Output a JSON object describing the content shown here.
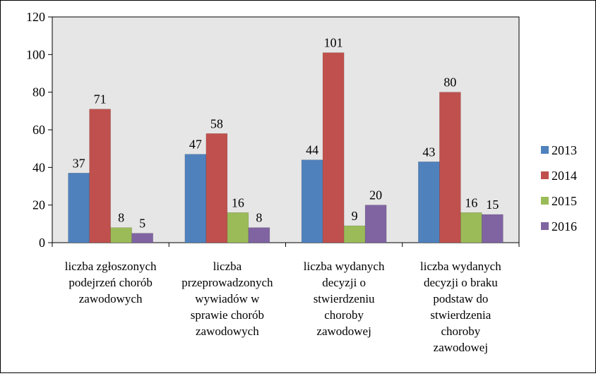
{
  "chart_data": {
    "type": "bar",
    "title": "",
    "xlabel": "",
    "ylabel": "",
    "ylim": [
      0,
      120
    ],
    "yticks": [
      0,
      20,
      40,
      60,
      80,
      100,
      120
    ],
    "grid": false,
    "legend_position": "right",
    "categories": [
      [
        "liczba zgłoszonych",
        "podejrzeń chorób",
        "zawodowych"
      ],
      [
        "liczba",
        "przeprowadzonych",
        "wywiadów w",
        "sprawie chorób",
        "zawodowych"
      ],
      [
        "liczba wydanych",
        "decyzji o",
        "stwierdzeniu",
        "choroby",
        "zawodowej"
      ],
      [
        "liczba wydanych",
        "decyzji o braku",
        "podstaw do",
        "stwierdzenia",
        "choroby",
        "zawodowej"
      ]
    ],
    "series": [
      {
        "name": "2013",
        "color": "#4F81BD",
        "values": [
          37,
          47,
          44,
          43
        ]
      },
      {
        "name": "2014",
        "color": "#C0504D",
        "values": [
          71,
          58,
          101,
          80
        ]
      },
      {
        "name": "2015",
        "color": "#9BBB59",
        "values": [
          8,
          16,
          9,
          16
        ]
      },
      {
        "name": "2016",
        "color": "#8064A2",
        "values": [
          5,
          8,
          20,
          15
        ]
      }
    ]
  }
}
